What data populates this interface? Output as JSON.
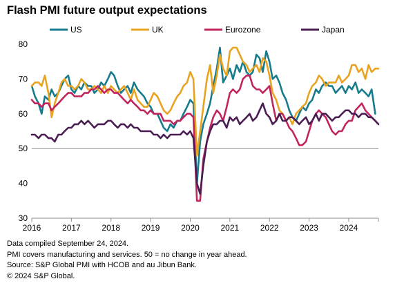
{
  "title": "Flash PMI future output expectations",
  "notes": [
    "Data compiled September 24, 2024.",
    "PMI covers manufacturing and services. 50 = no change in year ahead.",
    "Source: S&P Global PMI with HCOB and au Jibun Bank.",
    "© 2024 S&P Global."
  ],
  "chart_data": {
    "type": "line",
    "title": "Flash PMI future output expectations",
    "xlabel": "",
    "ylabel": "",
    "xlim": [
      2016,
      2024.75
    ],
    "ylim": [
      30,
      80
    ],
    "yticks": [
      30,
      40,
      50,
      60,
      70,
      80
    ],
    "xticks": [
      "2016",
      "2017",
      "2018",
      "2019",
      "2020",
      "2021",
      "2022",
      "2023",
      "2024"
    ],
    "reference_line": 50,
    "grid": "none",
    "legend_position": "top",
    "series": [
      {
        "name": "US",
        "color": "#177b8e",
        "x": [
          2016.0,
          2016.08,
          2016.17,
          2016.25,
          2016.33,
          2016.42,
          2016.5,
          2016.58,
          2016.67,
          2016.75,
          2016.83,
          2016.92,
          2017.0,
          2017.08,
          2017.17,
          2017.25,
          2017.33,
          2017.42,
          2017.5,
          2017.58,
          2017.67,
          2017.75,
          2017.83,
          2017.92,
          2018.0,
          2018.08,
          2018.17,
          2018.25,
          2018.33,
          2018.42,
          2018.5,
          2018.58,
          2018.67,
          2018.75,
          2018.83,
          2018.92,
          2019.0,
          2019.08,
          2019.17,
          2019.25,
          2019.33,
          2019.42,
          2019.5,
          2019.58,
          2019.67,
          2019.75,
          2019.83,
          2019.92,
          2020.0,
          2020.08,
          2020.17,
          2020.25,
          2020.33,
          2020.42,
          2020.5,
          2020.58,
          2020.67,
          2020.75,
          2020.83,
          2020.92,
          2021.0,
          2021.08,
          2021.17,
          2021.25,
          2021.33,
          2021.42,
          2021.5,
          2021.58,
          2021.67,
          2021.75,
          2021.83,
          2021.92,
          2022.0,
          2022.08,
          2022.17,
          2022.25,
          2022.33,
          2022.42,
          2022.5,
          2022.58,
          2022.67,
          2022.75,
          2022.83,
          2022.92,
          2023.0,
          2023.08,
          2023.17,
          2023.25,
          2023.33,
          2023.42,
          2023.5,
          2023.58,
          2023.67,
          2023.75,
          2023.83,
          2023.92,
          2024.0,
          2024.08,
          2024.17,
          2024.25,
          2024.33,
          2024.42,
          2024.5,
          2024.58,
          2024.67
        ],
        "values": [
          68,
          65,
          63,
          60,
          65,
          64,
          67,
          65,
          66,
          68,
          70,
          71,
          67,
          66,
          68,
          67,
          69,
          68,
          68,
          66,
          67,
          69,
          68,
          70,
          72,
          71,
          68,
          66,
          67,
          68,
          66,
          69,
          67,
          66,
          65,
          63,
          62,
          60,
          60,
          58,
          56,
          55,
          57,
          56,
          58,
          58,
          60,
          62,
          64,
          63,
          40,
          52,
          57,
          60,
          63,
          68,
          73,
          79,
          69,
          71,
          73,
          70,
          74,
          72,
          75,
          72,
          71,
          72,
          77,
          76,
          72,
          78,
          75,
          70,
          71,
          69,
          66,
          64,
          61,
          59,
          58,
          60,
          62,
          61,
          63,
          64,
          67,
          66,
          68,
          69,
          68,
          68,
          66,
          67,
          68,
          66,
          68,
          67,
          69,
          66,
          67,
          66,
          65,
          67,
          60
        ]
      },
      {
        "name": "UK",
        "color": "#e8a321",
        "x": [
          2016.0,
          2016.08,
          2016.17,
          2016.25,
          2016.33,
          2016.42,
          2016.5,
          2016.58,
          2016.67,
          2016.75,
          2016.83,
          2016.92,
          2017.0,
          2017.08,
          2017.17,
          2017.25,
          2017.33,
          2017.42,
          2017.5,
          2017.58,
          2017.67,
          2017.75,
          2017.83,
          2017.92,
          2018.0,
          2018.08,
          2018.17,
          2018.25,
          2018.33,
          2018.42,
          2018.5,
          2018.58,
          2018.67,
          2018.75,
          2018.83,
          2018.92,
          2019.0,
          2019.08,
          2019.17,
          2019.25,
          2019.33,
          2019.42,
          2019.5,
          2019.58,
          2019.67,
          2019.75,
          2019.83,
          2019.92,
          2020.0,
          2020.08,
          2020.17,
          2020.25,
          2020.33,
          2020.42,
          2020.5,
          2020.58,
          2020.67,
          2020.75,
          2020.83,
          2020.92,
          2021.0,
          2021.08,
          2021.17,
          2021.25,
          2021.33,
          2021.42,
          2021.5,
          2021.58,
          2021.67,
          2021.75,
          2021.83,
          2021.92,
          2022.0,
          2022.08,
          2022.17,
          2022.25,
          2022.33,
          2022.42,
          2022.5,
          2022.58,
          2022.67,
          2022.75,
          2022.83,
          2022.92,
          2023.0,
          2023.08,
          2023.17,
          2023.25,
          2023.33,
          2023.42,
          2023.5,
          2023.58,
          2023.67,
          2023.75,
          2023.83,
          2023.92,
          2024.0,
          2024.08,
          2024.17,
          2024.25,
          2024.33,
          2024.42,
          2024.5,
          2024.58,
          2024.67,
          2024.75
        ],
        "values": [
          68,
          69,
          69,
          68,
          71,
          66,
          59,
          63,
          66,
          69,
          70,
          68,
          68,
          67,
          68,
          70,
          69,
          67,
          67,
          68,
          67,
          66,
          68,
          66,
          68,
          67,
          66,
          67,
          68,
          66,
          64,
          67,
          64,
          63,
          62,
          62,
          64,
          66,
          65,
          63,
          61,
          60,
          61,
          63,
          65,
          66,
          68,
          69,
          72,
          70,
          48,
          55,
          62,
          70,
          74,
          66,
          71,
          77,
          73,
          71,
          78,
          79,
          79,
          77,
          75,
          74,
          72,
          73,
          74,
          72,
          76,
          75,
          71,
          66,
          64,
          61,
          60,
          58,
          59,
          57,
          60,
          61,
          62,
          63,
          66,
          68,
          69,
          71,
          70,
          68,
          69,
          69,
          69,
          71,
          69,
          70,
          71,
          74,
          74,
          72,
          73,
          70,
          74,
          72,
          73,
          73
        ]
      },
      {
        "name": "Eurozone",
        "color": "#c0255f",
        "x": [
          2016.0,
          2016.08,
          2016.17,
          2016.25,
          2016.33,
          2016.42,
          2016.5,
          2016.58,
          2016.67,
          2016.75,
          2016.83,
          2016.92,
          2017.0,
          2017.08,
          2017.17,
          2017.25,
          2017.33,
          2017.42,
          2017.5,
          2017.58,
          2017.67,
          2017.75,
          2017.83,
          2017.92,
          2018.0,
          2018.08,
          2018.17,
          2018.25,
          2018.33,
          2018.42,
          2018.5,
          2018.58,
          2018.67,
          2018.75,
          2018.83,
          2018.92,
          2019.0,
          2019.08,
          2019.17,
          2019.25,
          2019.33,
          2019.42,
          2019.5,
          2019.58,
          2019.67,
          2019.75,
          2019.83,
          2019.92,
          2020.0,
          2020.08,
          2020.17,
          2020.25,
          2020.33,
          2020.42,
          2020.5,
          2020.58,
          2020.67,
          2020.75,
          2020.83,
          2020.92,
          2021.0,
          2021.08,
          2021.17,
          2021.25,
          2021.33,
          2021.42,
          2021.5,
          2021.58,
          2021.67,
          2021.75,
          2021.83,
          2021.92,
          2022.0,
          2022.08,
          2022.17,
          2022.25,
          2022.33,
          2022.42,
          2022.5,
          2022.58,
          2022.67,
          2022.75,
          2022.83,
          2022.92,
          2023.0,
          2023.08,
          2023.17,
          2023.25,
          2023.33,
          2023.42,
          2023.5,
          2023.58,
          2023.67,
          2023.75,
          2023.83,
          2023.92,
          2024.0,
          2024.08,
          2024.17,
          2024.25,
          2024.33,
          2024.42,
          2024.5,
          2024.58,
          2024.67,
          2024.75
        ],
        "values": [
          64,
          63,
          63,
          62,
          63,
          63,
          61,
          62,
          63,
          64,
          65,
          66,
          66,
          65,
          65,
          65,
          66,
          66,
          67,
          67,
          68,
          67,
          66,
          67,
          67,
          66,
          66,
          65,
          64,
          63,
          64,
          63,
          62,
          61,
          61,
          60,
          61,
          60,
          60,
          60,
          58,
          58,
          58,
          57,
          58,
          58,
          59,
          60,
          60,
          59,
          35,
          35,
          47,
          52,
          56,
          59,
          61,
          60,
          58,
          62,
          66,
          67,
          66,
          67,
          70,
          71,
          71,
          68,
          67,
          67,
          66,
          67,
          68,
          63,
          58,
          60,
          60,
          58,
          56,
          55,
          53,
          51,
          51,
          52,
          55,
          58,
          60,
          61,
          60,
          59,
          57,
          55,
          54,
          55,
          55,
          57,
          58,
          58,
          61,
          62,
          63,
          61,
          60,
          59,
          58,
          57
        ]
      },
      {
        "name": "Japan",
        "color": "#4a1e52",
        "x": [
          2016.0,
          2016.08,
          2016.17,
          2016.25,
          2016.33,
          2016.42,
          2016.5,
          2016.58,
          2016.67,
          2016.75,
          2016.83,
          2016.92,
          2017.0,
          2017.08,
          2017.17,
          2017.25,
          2017.33,
          2017.42,
          2017.5,
          2017.58,
          2017.67,
          2017.75,
          2017.83,
          2017.92,
          2018.0,
          2018.08,
          2018.17,
          2018.25,
          2018.33,
          2018.42,
          2018.5,
          2018.58,
          2018.67,
          2018.75,
          2018.83,
          2018.92,
          2019.0,
          2019.08,
          2019.17,
          2019.25,
          2019.33,
          2019.42,
          2019.5,
          2019.58,
          2019.67,
          2019.75,
          2019.83,
          2019.92,
          2020.0,
          2020.08,
          2020.17,
          2020.25,
          2020.33,
          2020.42,
          2020.5,
          2020.58,
          2020.67,
          2020.75,
          2020.83,
          2020.92,
          2021.0,
          2021.08,
          2021.17,
          2021.25,
          2021.33,
          2021.42,
          2021.5,
          2021.58,
          2021.67,
          2021.75,
          2021.83,
          2021.92,
          2022.0,
          2022.08,
          2022.17,
          2022.25,
          2022.33,
          2022.42,
          2022.5,
          2022.58,
          2022.67,
          2022.75,
          2022.83,
          2022.92,
          2023.0,
          2023.08,
          2023.17,
          2023.25,
          2023.33,
          2023.42,
          2023.5,
          2023.58,
          2023.67,
          2023.75,
          2023.83,
          2023.92,
          2024.0,
          2024.08,
          2024.17,
          2024.25,
          2024.33,
          2024.42,
          2024.5,
          2024.58,
          2024.67,
          2024.75
        ],
        "values": [
          54,
          54,
          53,
          54,
          54,
          53,
          53,
          52,
          54,
          54,
          55,
          56,
          56,
          57,
          57,
          58,
          57,
          58,
          57,
          56,
          57,
          57,
          57,
          58,
          58,
          57,
          56,
          57,
          57,
          56,
          57,
          56,
          56,
          55,
          55,
          55,
          55,
          54,
          54,
          53,
          54,
          53,
          54,
          54,
          54,
          54,
          55,
          54,
          55,
          53,
          40,
          37,
          45,
          52,
          55,
          57,
          57,
          58,
          58,
          56,
          59,
          58,
          59,
          57,
          58,
          59,
          60,
          58,
          59,
          61,
          63,
          60,
          59,
          57,
          58,
          60,
          58,
          58,
          59,
          59,
          58,
          57,
          58,
          59,
          57,
          58,
          60,
          58,
          60,
          60,
          59,
          58,
          59,
          59,
          60,
          61,
          61,
          60,
          60,
          59,
          60,
          60,
          59,
          59,
          58,
          57
        ]
      }
    ]
  }
}
